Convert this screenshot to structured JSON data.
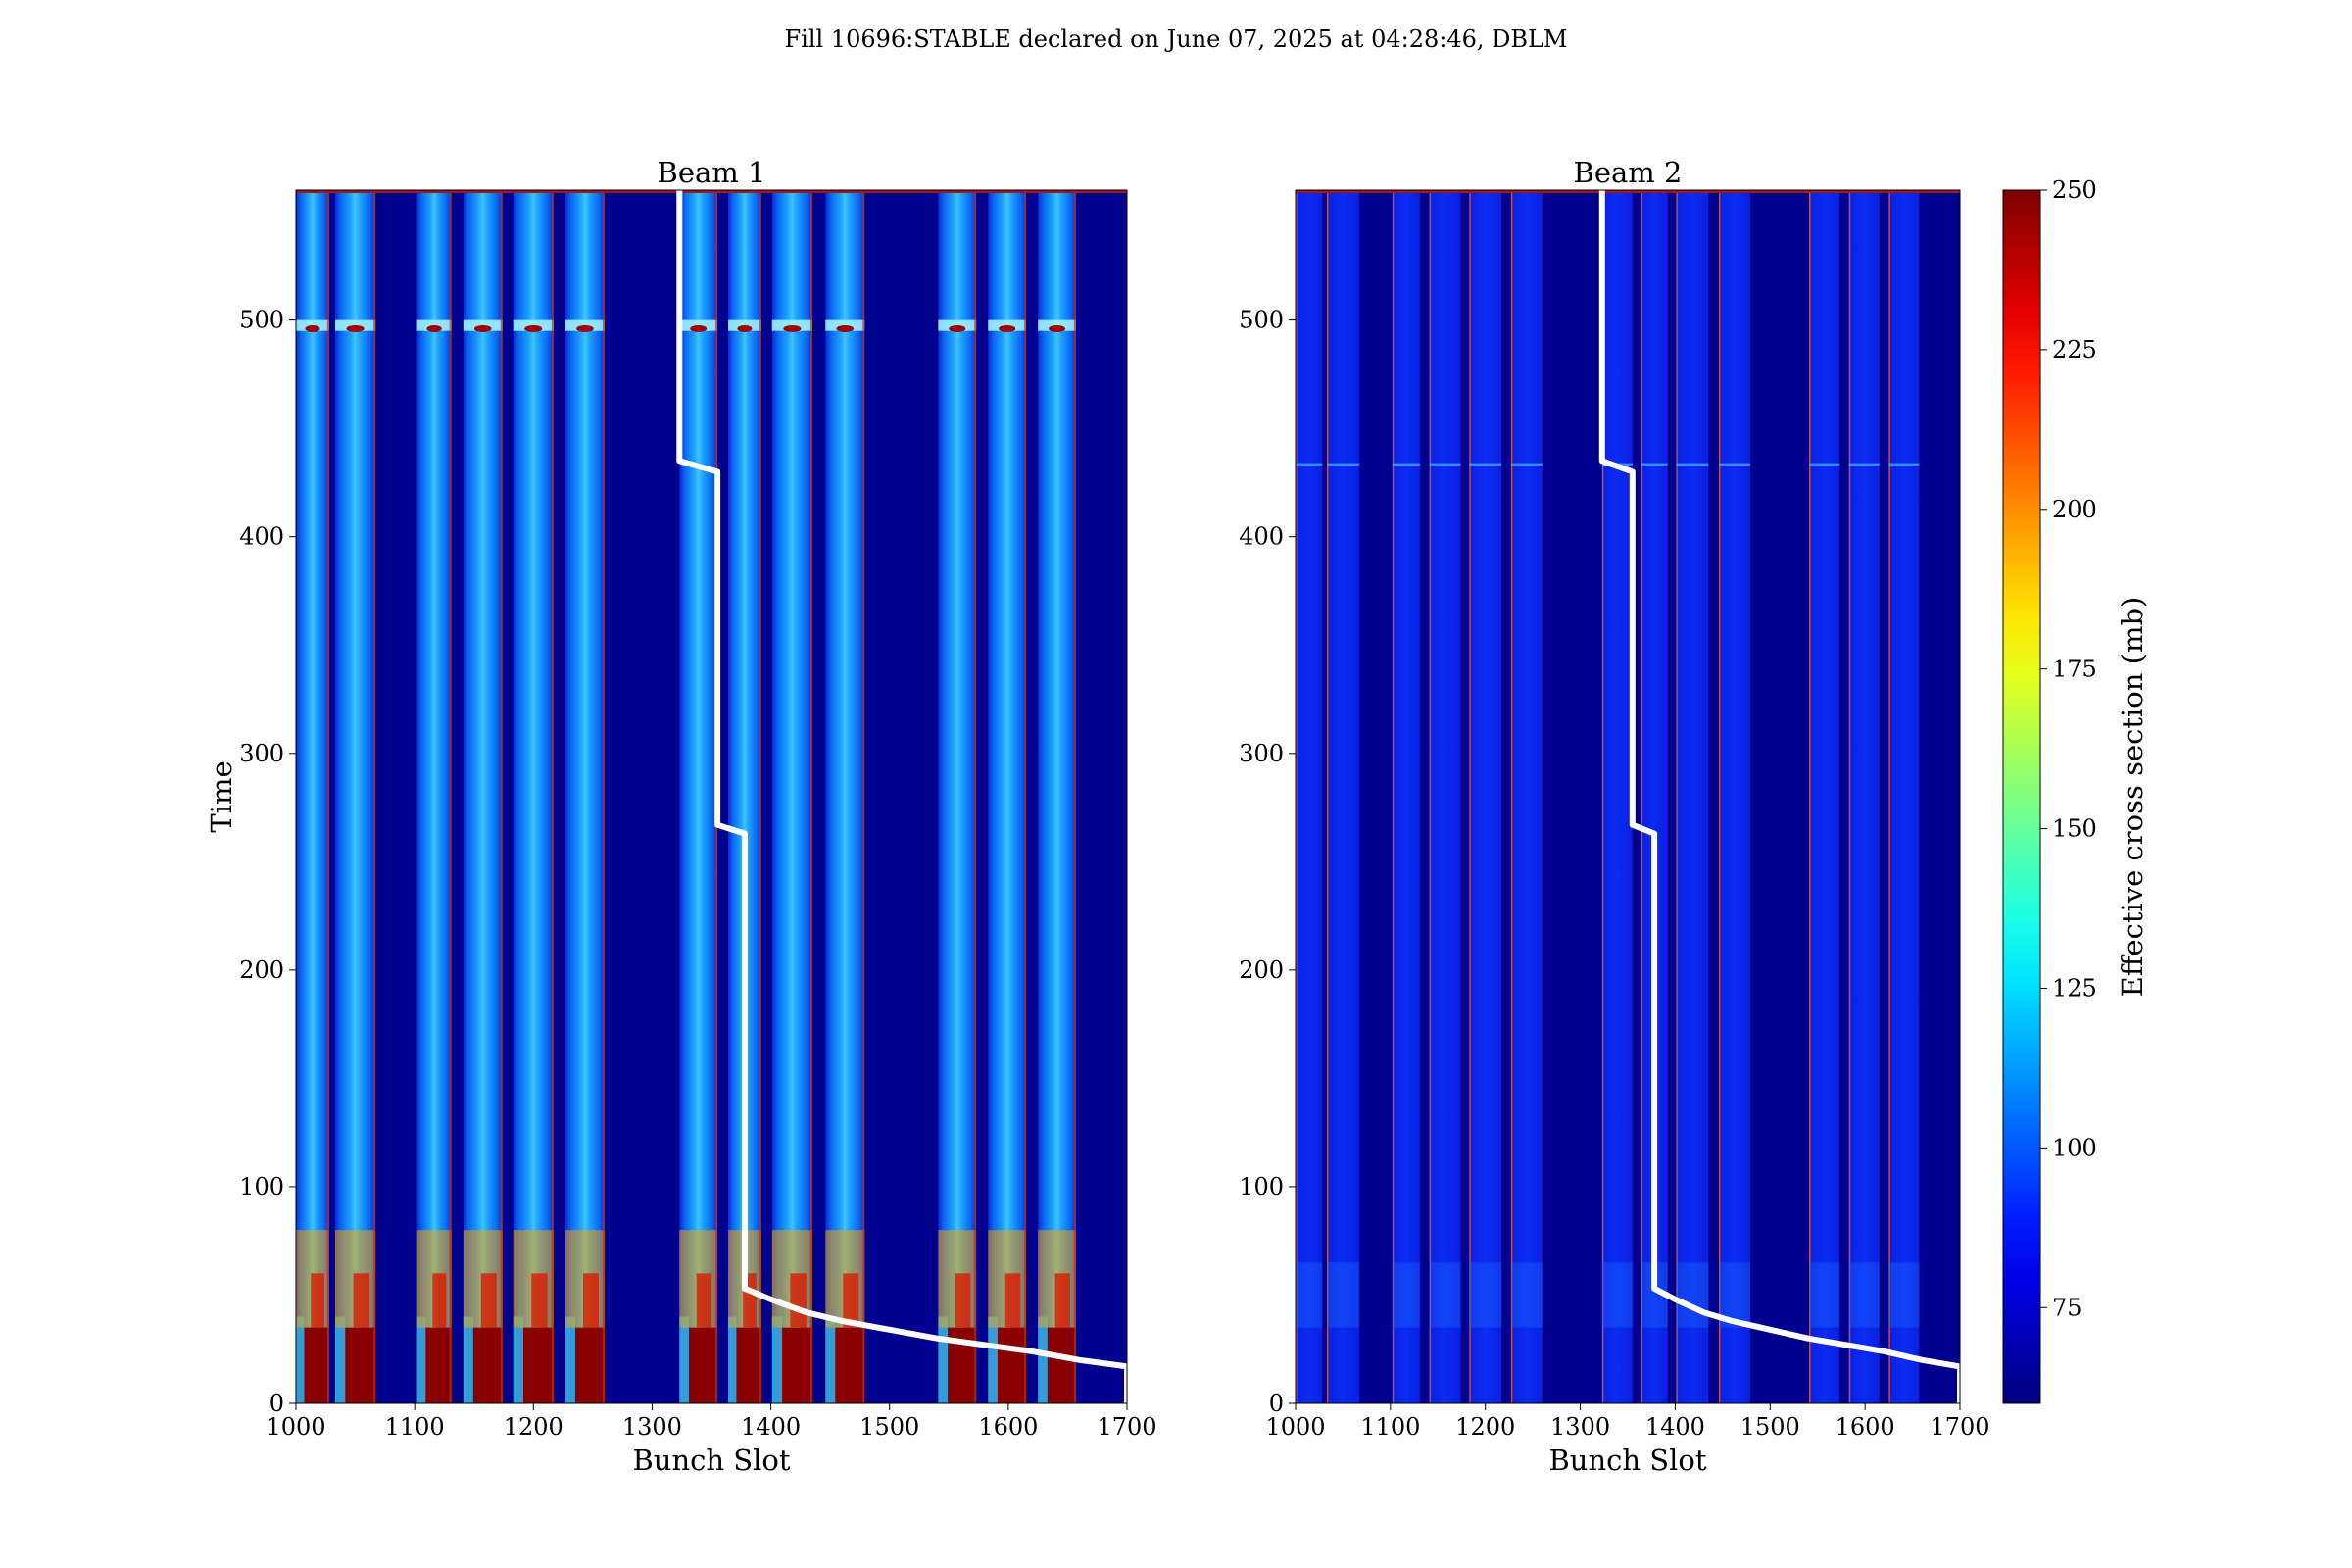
{
  "chart_data": {
    "type": "heatmap",
    "title": "Fill 10696:STABLE declared on June 07, 2025 at 04:28:46, DBLM",
    "panels": [
      {
        "title": "Beam 1",
        "xlabel": "Bunch Slot",
        "ylabel": "Time",
        "xlim": [
          1000,
          1700
        ],
        "ylim": [
          0,
          560
        ],
        "xticks": [
          "1000",
          "1100",
          "1200",
          "1300",
          "1400",
          "1500",
          "1600",
          "1700"
        ],
        "yticks": [
          "0",
          "100",
          "200",
          "300",
          "400",
          "500"
        ]
      },
      {
        "title": "Beam 2",
        "xlabel": "Bunch Slot",
        "ylabel": "",
        "xlim": [
          1000,
          1700
        ],
        "ylim": [
          0,
          560
        ],
        "xticks": [
          "1000",
          "1100",
          "1200",
          "1300",
          "1400",
          "1500",
          "1600",
          "1700"
        ],
        "yticks": [
          "0",
          "100",
          "200",
          "300",
          "400",
          "500"
        ]
      }
    ],
    "trains": [
      [
        1000,
        1028
      ],
      [
        1033,
        1067
      ],
      [
        1102,
        1131
      ],
      [
        1141,
        1174
      ],
      [
        1183,
        1217
      ],
      [
        1227,
        1260
      ],
      [
        1323,
        1355
      ],
      [
        1364,
        1392
      ],
      [
        1401,
        1435
      ],
      [
        1446,
        1479
      ],
      [
        1541,
        1573
      ],
      [
        1583,
        1615
      ],
      [
        1625,
        1657
      ]
    ],
    "overlay_line": {
      "color": "#ffffff",
      "points": [
        [
          1323,
          560
        ],
        [
          1323,
          435
        ],
        [
          1355,
          430
        ],
        [
          1355,
          267
        ],
        [
          1378,
          263
        ],
        [
          1378,
          53
        ],
        [
          1400,
          48
        ],
        [
          1430,
          42
        ],
        [
          1460,
          38
        ],
        [
          1500,
          34
        ],
        [
          1540,
          30
        ],
        [
          1580,
          27
        ],
        [
          1620,
          24
        ],
        [
          1660,
          20
        ],
        [
          1700,
          17
        ],
        [
          1700,
          0
        ]
      ]
    },
    "colorbar": {
      "label": "Effective cross section (mb)",
      "cmap": "jet",
      "range": [
        60,
        250
      ],
      "ticks": [
        "75",
        "100",
        "125",
        "150",
        "175",
        "200",
        "225",
        "250"
      ]
    }
  }
}
